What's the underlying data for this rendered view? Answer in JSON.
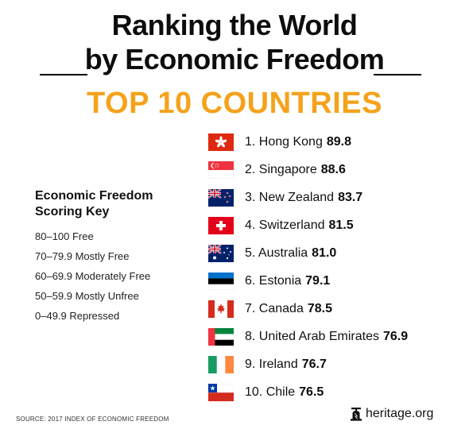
{
  "header": {
    "title_line1": "Ranking the World",
    "title_line2": "by Economic Freedom",
    "subtitle": "TOP 10 COUNTRIES",
    "subtitle_color": "#f5a21b"
  },
  "key": {
    "title_line1": "Economic Freedom",
    "title_line2": "Scoring Key",
    "items": [
      "80–100 Free",
      "70–79.9 Mostly Free",
      "60–69.9 Moderately Free",
      "50–59.9 Mostly Unfree",
      "0–49.9 Repressed"
    ]
  },
  "rankings": [
    {
      "label": "1. Hong Kong",
      "score": "89.8",
      "flag": "hong-kong-flag-icon"
    },
    {
      "label": "2. Singapore",
      "score": "88.6",
      "flag": "singapore-flag-icon"
    },
    {
      "label": "3. New Zealand",
      "score": "83.7",
      "flag": "new-zealand-flag-icon"
    },
    {
      "label": "4. Switzerland",
      "score": "81.5",
      "flag": "switzerland-flag-icon"
    },
    {
      "label": "5. Australia",
      "score": "81.0",
      "flag": "australia-flag-icon"
    },
    {
      "label": "6. Estonia",
      "score": "79.1",
      "flag": "estonia-flag-icon"
    },
    {
      "label": "7. Canada",
      "score": "78.5",
      "flag": "canada-flag-icon"
    },
    {
      "label": "8. United Arab Emirates",
      "score": "76.9",
      "flag": "uae-flag-icon"
    },
    {
      "label": "9. Ireland",
      "score": "76.7",
      "flag": "ireland-flag-icon"
    },
    {
      "label": "10. Chile",
      "score": "76.5",
      "flag": "chile-flag-icon"
    }
  ],
  "footer": {
    "source": "SOURCE: 2017 INDEX OF ECONOMIC FREEDOM",
    "brand": "heritage.org",
    "brand_icon": "liberty-bell-icon"
  }
}
